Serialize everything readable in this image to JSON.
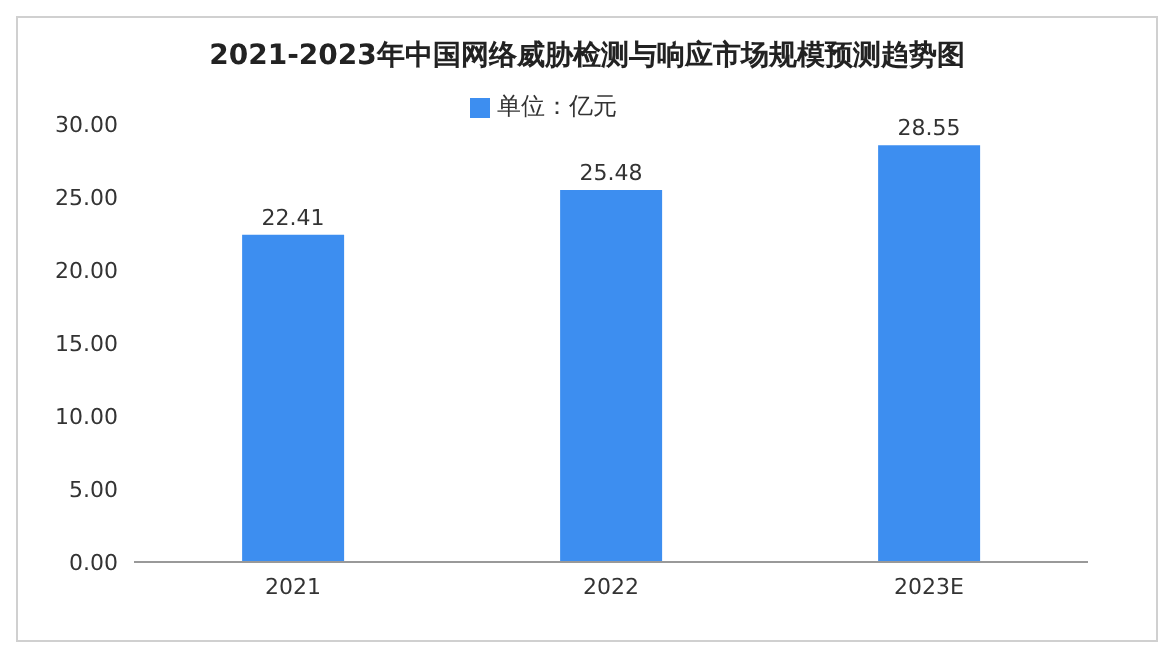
{
  "chart_data": {
    "type": "bar",
    "title": "2021-2023年中国网络威胁检测与响应市场规模预测趋势图",
    "categories": [
      "2021",
      "2022",
      "2023E"
    ],
    "series": [
      {
        "name": "单位：亿元",
        "color": "#3d8ef0",
        "values": [
          22.41,
          25.48,
          28.55
        ]
      }
    ],
    "ylim": [
      0,
      30
    ],
    "yticks": [
      {
        "value": 0,
        "label": "0.00"
      },
      {
        "value": 5,
        "label": "5.00"
      },
      {
        "value": 10,
        "label": "10.00"
      },
      {
        "value": 15,
        "label": "15.00"
      },
      {
        "value": 20,
        "label": "20.00"
      },
      {
        "value": 25,
        "label": "25.00"
      },
      {
        "value": 30,
        "label": "30.00"
      }
    ],
    "data_labels": true,
    "legend": "top",
    "grid": false
  }
}
